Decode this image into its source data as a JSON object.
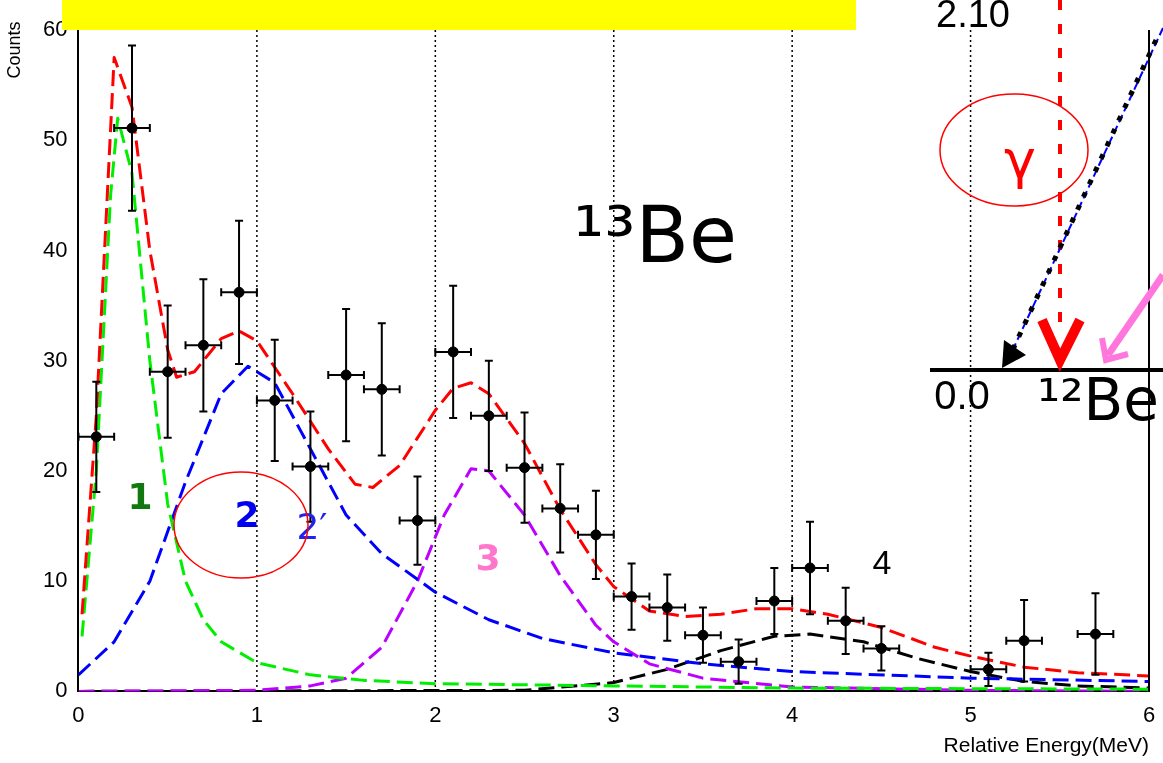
{
  "chart_data": {
    "type": "scatter",
    "xlabel": "Relative Energy(MeV)",
    "ylabel": "Counts",
    "xlim": [
      0,
      6
    ],
    "xticks": [
      0,
      1,
      2,
      3,
      4,
      5,
      6
    ],
    "ylim": [
      0,
      60
    ],
    "yticks": [
      0,
      10,
      20,
      30,
      40,
      50,
      60
    ],
    "grid": "x",
    "legend": false,
    "series": [
      {
        "type": "scatter",
        "color": "#000000",
        "marker": "circle",
        "x": [
          0.1,
          0.3,
          0.5,
          0.7,
          0.9,
          1.1,
          1.3,
          1.5,
          1.7,
          1.9,
          2.1,
          2.3,
          2.5,
          2.7,
          2.9,
          3.1,
          3.3,
          3.5,
          3.7,
          3.9,
          4.1,
          4.3,
          4.5,
          5.1,
          5.3,
          5.7
        ],
        "values": [
          23.1,
          51.1,
          29.0,
          31.4,
          36.2,
          26.4,
          20.4,
          28.7,
          27.4,
          15.5,
          30.8,
          25.0,
          20.3,
          16.6,
          14.2,
          8.6,
          7.6,
          5.1,
          2.7,
          8.2,
          11.2,
          6.4,
          3.9,
          2.0,
          4.6,
          5.2
        ],
        "errors": [
          5,
          7.5,
          6,
          6,
          6.5,
          5.5,
          5,
          6,
          6,
          4,
          6,
          5,
          5,
          4,
          4,
          3,
          3,
          2.5,
          2,
          3,
          4.2,
          3,
          2,
          1.5,
          3.7,
          3.7
        ],
        "xerrors": [
          0.1,
          0.1,
          0.1,
          0.1,
          0.1,
          0.1,
          0.1,
          0.1,
          0.1,
          0.1,
          0.1,
          0.1,
          0.1,
          0.1,
          0.1,
          0.1,
          0.1,
          0.1,
          0.1,
          0.1,
          0.1,
          0.1,
          0.1,
          0.1,
          0.1,
          0.1
        ]
      },
      {
        "type": "line",
        "color": "#ff0000",
        "line_style": "dashed",
        "marker": "none",
        "x": [
          0.02,
          0.1,
          0.2,
          0.3,
          0.4,
          0.5,
          0.55,
          0.65,
          0.8,
          0.9,
          1.0,
          1.2,
          1.4,
          1.55,
          1.65,
          1.8,
          2.0,
          2.1,
          2.2,
          2.3,
          2.5,
          2.7,
          2.9,
          3.0,
          3.2,
          3.4,
          3.6,
          3.8,
          4.0,
          4.2,
          4.5,
          4.8,
          5.0,
          5.3,
          5.6,
          6.0
        ],
        "values": [
          7,
          25,
          57.5,
          53,
          40,
          31,
          28.5,
          29,
          32,
          32.7,
          31.8,
          27,
          22,
          18.8,
          18.5,
          20.5,
          25.5,
          27.5,
          28,
          27,
          22.5,
          16.5,
          11.5,
          9.5,
          7.3,
          6.8,
          7.0,
          7.5,
          7.5,
          7.0,
          5.8,
          4.0,
          3.2,
          2.2,
          1.7,
          1.4
        ]
      },
      {
        "type": "line",
        "color": "#00ee00",
        "line_style": "dashed",
        "marker": "none",
        "x": [
          0.02,
          0.1,
          0.18,
          0.22,
          0.3,
          0.4,
          0.5,
          0.6,
          0.7,
          0.8,
          1.0,
          1.3,
          1.6,
          2.0,
          3.0,
          4.0,
          6.0
        ],
        "values": [
          5,
          20,
          45,
          52,
          47,
          30,
          17,
          10,
          6.5,
          4.5,
          2.6,
          1.5,
          1.0,
          0.7,
          0.5,
          0.3,
          0.2
        ]
      },
      {
        "type": "line",
        "color": "#0000ff",
        "line_style": "dashed",
        "marker": "none",
        "x": [
          0,
          0.2,
          0.4,
          0.6,
          0.8,
          0.95,
          1.1,
          1.3,
          1.5,
          1.7,
          2.0,
          2.3,
          2.6,
          3.0,
          3.5,
          4.0,
          5.0,
          6.0
        ],
        "values": [
          1.5,
          4.5,
          10,
          19,
          27,
          29.5,
          28,
          22,
          16,
          12.5,
          9,
          6.5,
          4.8,
          3.5,
          2.5,
          1.8,
          1.2,
          0.9
        ]
      },
      {
        "type": "line",
        "color": "#bb00ff",
        "line_style": "dashed",
        "marker": "none",
        "x": [
          0,
          1.0,
          1.3,
          1.5,
          1.7,
          1.9,
          2.05,
          2.2,
          2.3,
          2.5,
          2.7,
          2.9,
          3.0,
          3.2,
          3.5,
          4.0,
          5.0,
          6.0
        ],
        "values": [
          0,
          0.1,
          0.5,
          1.2,
          4,
          10,
          16,
          20.2,
          20,
          16,
          10.5,
          6,
          4.5,
          2.5,
          1.2,
          0.4,
          0.1,
          0
        ]
      },
      {
        "type": "line",
        "color": "#000000",
        "line_style": "dashed",
        "marker": "none",
        "x": [
          0,
          2.5,
          3.0,
          3.3,
          3.6,
          3.9,
          4.1,
          4.4,
          4.7,
          5.0,
          5.3,
          5.6,
          6.0
        ],
        "values": [
          0,
          0.1,
          0.8,
          2,
          3.7,
          5.0,
          5.2,
          4.5,
          3.0,
          1.8,
          0.9,
          0.5,
          0.3
        ]
      }
    ],
    "annotations": [
      "1",
      "2",
      "2′",
      "3",
      "4",
      "¹³Be",
      "2.10",
      "γ",
      "0.0",
      "¹²Be"
    ]
  }
}
